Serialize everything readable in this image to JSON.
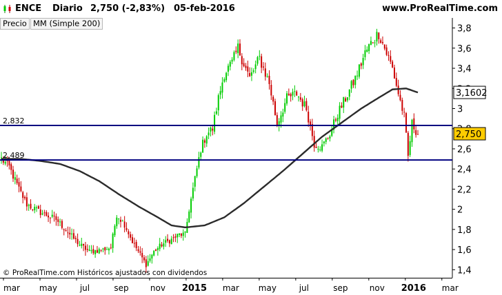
{
  "header": {
    "ticker": "ENCE",
    "period": "Diario",
    "last": "2,750 (-2,83%)",
    "date": "05-feb-2016",
    "site": "www.ProRealTime.com"
  },
  "tabs": [
    {
      "label": "Precio"
    },
    {
      "label": "MM (Simple 200)"
    }
  ],
  "footer": {
    "copyright": "© ProRealTime.com Históricos ajustados con dividendos"
  },
  "colors": {
    "up": "#00cc00",
    "down": "#cc0000",
    "sma": "#2b2b2b",
    "hline": "#000080",
    "last_badge": "#ffcc00",
    "sma_badge": "#ffffff"
  },
  "chart_data": {
    "type": "candlestick",
    "ylim": [
      1.32,
      3.9
    ],
    "y_ticks": [
      "3,8",
      "3,6",
      "3,4",
      "3,2",
      "3",
      "2,8",
      "2,6",
      "2,4",
      "2,2",
      "2",
      "1,8",
      "1,6",
      "1,4"
    ],
    "x_ticks": [
      "mar",
      "may",
      "jul",
      "sep",
      "nov",
      "2015",
      "mar",
      "may",
      "jul",
      "sep",
      "nov",
      "2016",
      "mar"
    ],
    "horizontal_lines": [
      {
        "value": 2.832,
        "label": "2,832"
      },
      {
        "value": 2.489,
        "label": "2,489"
      }
    ],
    "price_badge": {
      "value": 2.75,
      "label": "2,750"
    },
    "sma_badge": {
      "value": 3.1602,
      "label": "3,1602"
    },
    "price_keypoints": [
      [
        0,
        2.5
      ],
      [
        4,
        2.42
      ],
      [
        9,
        2.2
      ],
      [
        13,
        2.05
      ],
      [
        20,
        1.97
      ],
      [
        28,
        1.9
      ],
      [
        35,
        1.75
      ],
      [
        40,
        1.65
      ],
      [
        45,
        1.58
      ],
      [
        52,
        1.6
      ],
      [
        56,
        1.62
      ],
      [
        59,
        1.95
      ],
      [
        63,
        1.85
      ],
      [
        67,
        1.68
      ],
      [
        71,
        1.55
      ],
      [
        74,
        1.45
      ],
      [
        78,
        1.58
      ],
      [
        82,
        1.65
      ],
      [
        87,
        1.7
      ],
      [
        91,
        1.75
      ],
      [
        94,
        1.75
      ],
      [
        96,
        2.0
      ],
      [
        99,
        2.3
      ],
      [
        102,
        2.6
      ],
      [
        105,
        2.75
      ],
      [
        108,
        2.8
      ],
      [
        111,
        3.1
      ],
      [
        114,
        3.35
      ],
      [
        118,
        3.45
      ],
      [
        121,
        3.6
      ],
      [
        124,
        3.45
      ],
      [
        127,
        3.3
      ],
      [
        132,
        3.5
      ],
      [
        137,
        3.25
      ],
      [
        141,
        2.85
      ],
      [
        146,
        3.1
      ],
      [
        151,
        3.15
      ],
      [
        156,
        3.0
      ],
      [
        160,
        2.65
      ],
      [
        164,
        2.62
      ],
      [
        168,
        2.75
      ],
      [
        172,
        2.95
      ],
      [
        176,
        3.1
      ],
      [
        181,
        3.3
      ],
      [
        186,
        3.55
      ],
      [
        190,
        3.68
      ],
      [
        193,
        3.75
      ],
      [
        196,
        3.6
      ],
      [
        200,
        3.4
      ],
      [
        203,
        3.15
      ],
      [
        206,
        2.92
      ],
      [
        208,
        2.52
      ],
      [
        210,
        2.85
      ],
      [
        213,
        2.75
      ]
    ],
    "sma_keypoints": [
      [
        0,
        2.5
      ],
      [
        10,
        2.5
      ],
      [
        20,
        2.48
      ],
      [
        30,
        2.45
      ],
      [
        40,
        2.38
      ],
      [
        50,
        2.28
      ],
      [
        60,
        2.15
      ],
      [
        70,
        2.03
      ],
      [
        80,
        1.92
      ],
      [
        87,
        1.84
      ],
      [
        94,
        1.82
      ],
      [
        104,
        1.84
      ],
      [
        114,
        1.92
      ],
      [
        124,
        2.06
      ],
      [
        134,
        2.22
      ],
      [
        144,
        2.38
      ],
      [
        154,
        2.55
      ],
      [
        164,
        2.72
      ],
      [
        174,
        2.86
      ],
      [
        184,
        3.0
      ],
      [
        194,
        3.12
      ],
      [
        200,
        3.19
      ],
      [
        207,
        3.2
      ],
      [
        213,
        3.16
      ]
    ]
  }
}
